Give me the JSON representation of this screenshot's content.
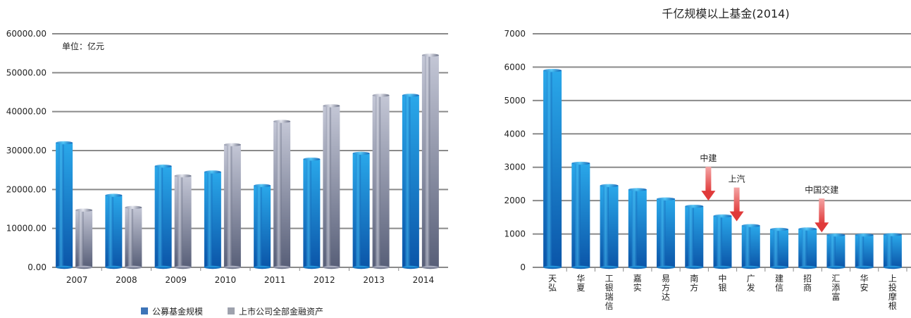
{
  "chart_data": [
    {
      "type": "bar",
      "title": "",
      "unit_note": "单位：亿元",
      "categories": [
        "2007",
        "2008",
        "2009",
        "2010",
        "2011",
        "2012",
        "2013",
        "2014"
      ],
      "yticks": [
        "0.00",
        "10000.00",
        "20000.00",
        "30000.00",
        "40000.00",
        "50000.00",
        "60000.00"
      ],
      "ylim": [
        0,
        60000
      ],
      "grid": true,
      "legend_position": "bottom",
      "series": [
        {
          "name": "公募基金规模",
          "color": "#1f86d0",
          "values": [
            32000,
            18500,
            26000,
            24500,
            21000,
            27800,
            29300,
            44200
          ]
        },
        {
          "name": "上市公司全部金融资产",
          "color": "#9ba0b0",
          "values": [
            14700,
            15400,
            23500,
            31500,
            37500,
            41500,
            44200,
            54500
          ]
        }
      ]
    },
    {
      "type": "bar",
      "title": "千亿规模以上基金(2014)",
      "categories": [
        "天弘",
        "华夏",
        "工银瑞信",
        "嘉实",
        "易方达",
        "南方",
        "中银",
        "广发",
        "建信",
        "招商",
        "汇添富",
        "华安",
        "上投摩根"
      ],
      "values": [
        5900,
        3120,
        2450,
        2330,
        2050,
        1830,
        1540,
        1250,
        1140,
        1150,
        970,
        970,
        980
      ],
      "yticks": [
        "0",
        "1000",
        "2000",
        "3000",
        "4000",
        "5000",
        "6000",
        "7000"
      ],
      "ylim": [
        0,
        7000
      ],
      "grid": true,
      "color": "#1f86d0",
      "annotations": [
        {
          "text": "中建",
          "x_between": [
            "南方",
            "南方"
          ],
          "arrow_to": 2000
        },
        {
          "text": "上汽",
          "x_between": [
            "中银",
            "中银"
          ],
          "arrow_to": 1380
        },
        {
          "text": "中国交建",
          "x_between": [
            "招商",
            "汇添富"
          ],
          "arrow_to": 1050
        }
      ]
    }
  ]
}
